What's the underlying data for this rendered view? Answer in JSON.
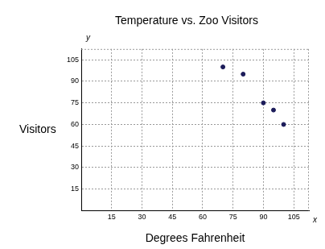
{
  "chart_data": {
    "type": "scatter",
    "title": "Temperature vs. Zoo Visitors",
    "x_label": "Degrees Fahrenheit",
    "y_label": "Visitors",
    "annotations": [
      "y",
      "x"
    ],
    "x": [
      70,
      80,
      90,
      95,
      100
    ],
    "values": [
      100,
      95,
      75,
      70,
      60
    ],
    "color": "#1c1c5a",
    "xlim": [
      0,
      112.5
    ],
    "xticks": [
      15,
      30,
      45,
      60,
      75,
      90,
      105
    ],
    "ylim": [
      0,
      112.5
    ],
    "yticks": [
      15,
      30,
      45,
      60,
      75,
      90,
      105
    ],
    "grid": true
  }
}
